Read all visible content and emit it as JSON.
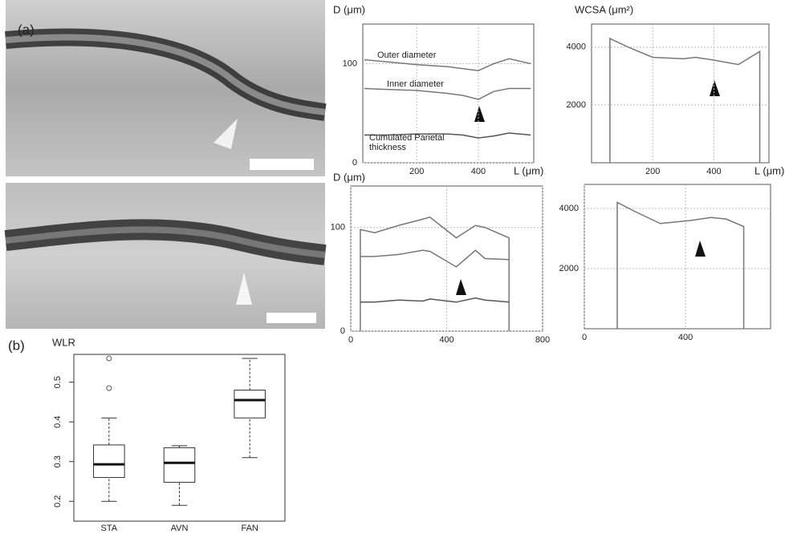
{
  "panels": [
    "(a)",
    "(b)"
  ],
  "chart_data": [
    {
      "type": "line",
      "ylabel": "D (μm)",
      "xlabel": "L (μm)",
      "xlim": [
        25,
        580
      ],
      "ylim": [
        0,
        140
      ],
      "xticks": [
        200,
        400
      ],
      "yticks": [
        0,
        100
      ],
      "grid": true,
      "x": [
        30,
        100,
        200,
        300,
        350,
        400,
        450,
        500,
        570
      ],
      "series": [
        {
          "name": "Outer diameter",
          "color": "#777777",
          "values": [
            104,
            102,
            99,
            97,
            95,
            93,
            100,
            105,
            100
          ]
        },
        {
          "name": "Inner diameter",
          "color": "#777777",
          "values": [
            75,
            74,
            73,
            70,
            68,
            64,
            72,
            75,
            75
          ]
        },
        {
          "name": "Cumulated Parietal thickness",
          "color": "#555555",
          "values": [
            28,
            28,
            29,
            29,
            28,
            25,
            27,
            30,
            28
          ]
        }
      ]
    },
    {
      "type": "line",
      "ylabel": "WCSA (μm²)",
      "xlabel": "L (μm)",
      "xlim": [
        0,
        580
      ],
      "ylim": [
        0,
        4800
      ],
      "xticks": [
        200,
        400
      ],
      "yticks": [
        2000,
        4000
      ],
      "grid": true,
      "x": [
        60,
        60,
        120,
        200,
        300,
        340,
        400,
        480,
        550,
        550
      ],
      "series": [
        {
          "color": "#777777",
          "values": [
            0,
            4300,
            4000,
            3650,
            3600,
            3650,
            3550,
            3400,
            3850,
            0
          ]
        }
      ]
    },
    {
      "type": "line",
      "ylabel": "D (μm)",
      "xlim": [
        0,
        800
      ],
      "ylim": [
        0,
        140
      ],
      "xticks": [
        0,
        400,
        800
      ],
      "yticks": [
        0,
        100
      ],
      "grid": true,
      "x": [
        40,
        40,
        100,
        200,
        300,
        330,
        440,
        520,
        560,
        660,
        660
      ],
      "series": [
        {
          "color": "#777777",
          "values": [
            0,
            98,
            95,
            102,
            108,
            110,
            90,
            102,
            100,
            90,
            0
          ]
        },
        {
          "color": "#777777",
          "values": [
            null,
            72,
            72,
            74,
            78,
            77,
            62,
            78,
            70,
            69,
            null
          ]
        },
        {
          "color": "#555555",
          "values": [
            null,
            28,
            28,
            30,
            29,
            31,
            28,
            32,
            30,
            28,
            null
          ]
        }
      ]
    },
    {
      "type": "line",
      "xlim": [
        0,
        736
      ],
      "ylim": [
        0,
        4800
      ],
      "xticks": [
        0,
        400
      ],
      "yticks": [
        2000,
        4000
      ],
      "grid": true,
      "x": [
        130,
        130,
        200,
        300,
        420,
        500,
        560,
        630,
        630
      ],
      "series": [
        {
          "color": "#777777",
          "values": [
            0,
            4200,
            3900,
            3500,
            3600,
            3700,
            3650,
            3400,
            0
          ]
        }
      ]
    },
    {
      "type": "box",
      "title": "WLR",
      "categories": [
        "STA",
        "AVN",
        "FAN"
      ],
      "ylim": [
        0.15,
        0.57
      ],
      "yticks": [
        0.2,
        0.3,
        0.4,
        0.5
      ],
      "boxes": [
        {
          "whislo": 0.2,
          "q1": 0.26,
          "med": 0.293,
          "q3": 0.342,
          "whishi": 0.41,
          "fliers": [
            0.485,
            0.56
          ]
        },
        {
          "whislo": 0.19,
          "q1": 0.248,
          "med": 0.297,
          "q3": 0.335,
          "whishi": 0.34,
          "fliers": []
        },
        {
          "whislo": 0.31,
          "q1": 0.41,
          "med": 0.455,
          "q3": 0.48,
          "whishi": 0.56,
          "fliers": []
        }
      ]
    }
  ]
}
